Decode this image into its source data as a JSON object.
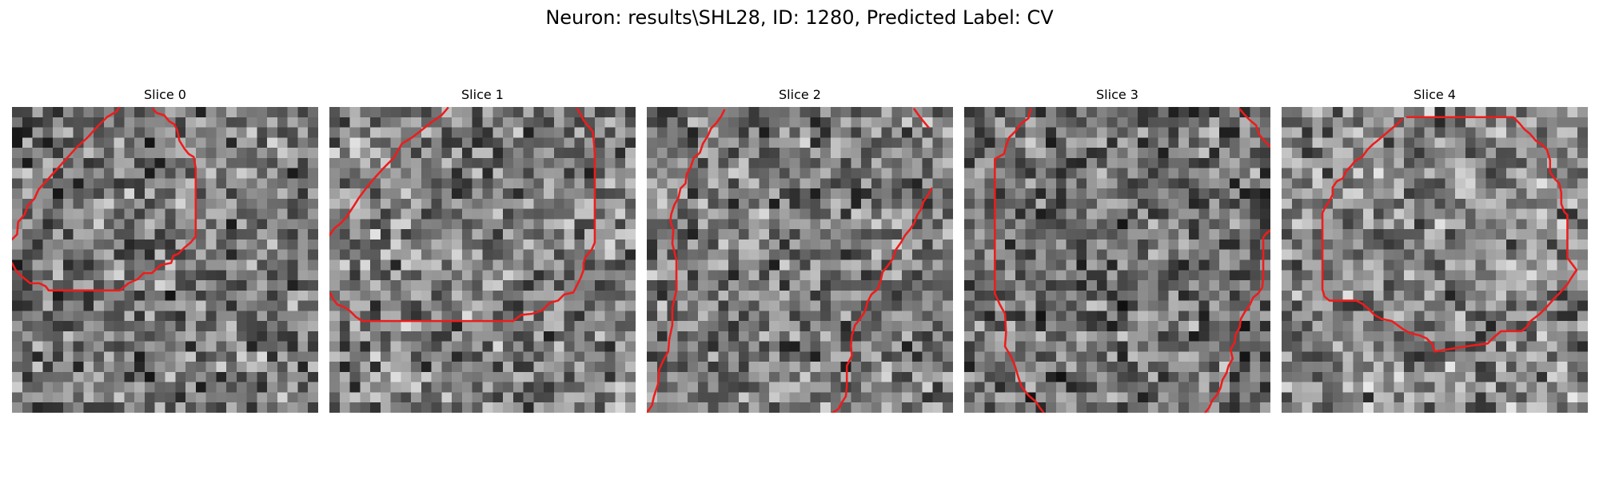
{
  "figure": {
    "title": "Neuron: results\\SHL28, ID: 1280, Predicted Label: CV"
  },
  "contour_color": "#ee1c1c",
  "slices": [
    {
      "title": "Slice 0",
      "seed": 11,
      "base": 0.46,
      "contours": [
        [
          [
            0,
            13.0
          ],
          [
            0.5,
            12.5
          ],
          [
            0.6,
            11.3
          ],
          [
            1.2,
            10.6
          ],
          [
            1.6,
            9.6
          ],
          [
            2.2,
            9.0
          ],
          [
            2.6,
            8.1
          ],
          [
            3.6,
            7.0
          ],
          [
            4.5,
            6.0
          ],
          [
            5.4,
            5.0
          ],
          [
            6.3,
            4.0
          ],
          [
            7.4,
            3.0
          ],
          [
            8.3,
            2.0
          ],
          [
            9.3,
            1.0
          ],
          [
            10.3,
            0.4
          ],
          [
            10.5,
            0
          ]
        ],
        [
          [
            13.8,
            0.2
          ],
          [
            14.2,
            0.6
          ],
          [
            14.9,
            0.8
          ],
          [
            15.4,
            1.4
          ],
          [
            15.9,
            1.7
          ],
          [
            16.2,
            2.3
          ],
          [
            16.4,
            3.3
          ],
          [
            16.9,
            4.1
          ],
          [
            17.3,
            4.6
          ],
          [
            17.8,
            4.9
          ],
          [
            18.0,
            6.0
          ],
          [
            18.0,
            9.5
          ],
          [
            18.0,
            12.7
          ],
          [
            17.5,
            13.3
          ],
          [
            16.9,
            13.8
          ],
          [
            16.3,
            14.4
          ],
          [
            15.8,
            14.6
          ],
          [
            15.6,
            15.3
          ],
          [
            14.6,
            15.5
          ],
          [
            13.7,
            16.3
          ],
          [
            12.9,
            16.3
          ],
          [
            12.3,
            16.9
          ],
          [
            11.4,
            17.3
          ],
          [
            10.6,
            18.0
          ],
          [
            8.6,
            18.0
          ],
          [
            5.0,
            18.0
          ],
          [
            3.6,
            18.0
          ],
          [
            3.3,
            17.6
          ],
          [
            2.7,
            17.3
          ],
          [
            1.8,
            17.3
          ],
          [
            1.3,
            16.9
          ],
          [
            0.7,
            16.4
          ],
          [
            0.3,
            15.9
          ],
          [
            0,
            15.3
          ]
        ]
      ]
    },
    {
      "title": "Slice 1",
      "seed": 23,
      "base": 0.5,
      "contours": [
        [
          [
            0,
            12.6
          ],
          [
            0.5,
            11.9
          ],
          [
            1.0,
            11.5
          ],
          [
            1.6,
            10.9
          ],
          [
            2.0,
            10.3
          ],
          [
            2.4,
            9.7
          ],
          [
            2.9,
            8.9
          ],
          [
            3.5,
            8.1
          ],
          [
            4.4,
            7.0
          ],
          [
            5.3,
            6.0
          ],
          [
            6.3,
            5.0
          ],
          [
            7.1,
            3.6
          ],
          [
            8.1,
            3.0
          ],
          [
            9.0,
            2.3
          ],
          [
            10.0,
            1.5
          ],
          [
            11.0,
            0.8
          ],
          [
            11.6,
            0.1
          ]
        ],
        [
          [
            24.3,
            0.2
          ],
          [
            24.6,
            0.7
          ],
          [
            24.9,
            1.3
          ],
          [
            25.3,
            1.8
          ],
          [
            25.8,
            2.4
          ],
          [
            25.9,
            3.3
          ],
          [
            26.0,
            4.5
          ],
          [
            26.0,
            7.7
          ],
          [
            26.0,
            11.5
          ],
          [
            26.0,
            13.3
          ],
          [
            25.7,
            14.0
          ],
          [
            25.1,
            14.7
          ],
          [
            24.9,
            15.3
          ],
          [
            24.9,
            16.0
          ],
          [
            24.6,
            16.8
          ],
          [
            24.3,
            17.4
          ],
          [
            23.9,
            18.2
          ],
          [
            23.0,
            18.4
          ],
          [
            22.4,
            19.0
          ],
          [
            21.6,
            19.2
          ],
          [
            20.8,
            20.0
          ],
          [
            19.8,
            20.3
          ],
          [
            18.8,
            20.4
          ],
          [
            18.0,
            21.0
          ],
          [
            10.0,
            21.0
          ],
          [
            3.2,
            21.0
          ],
          [
            2.6,
            20.6
          ],
          [
            2.0,
            20.0
          ],
          [
            1.4,
            19.6
          ],
          [
            0.8,
            19.4
          ],
          [
            0.4,
            18.9
          ],
          [
            0.1,
            18.3
          ]
        ]
      ]
    },
    {
      "title": "Slice 2",
      "seed": 37,
      "base": 0.48,
      "contours": [
        [
          [
            0,
            30.0
          ],
          [
            0.5,
            29.3
          ],
          [
            0.7,
            28.4
          ],
          [
            1.1,
            27.2
          ],
          [
            1.2,
            25.8
          ],
          [
            1.6,
            24.9
          ],
          [
            2.1,
            24.0
          ],
          [
            2.2,
            22.8
          ],
          [
            2.5,
            21.4
          ],
          [
            2.5,
            19.7
          ],
          [
            2.9,
            18.0
          ],
          [
            2.9,
            16.4
          ],
          [
            2.9,
            15.0
          ],
          [
            2.5,
            13.4
          ],
          [
            2.6,
            12.1
          ],
          [
            2.3,
            11.2
          ],
          [
            2.4,
            10.5
          ],
          [
            2.7,
            9.6
          ],
          [
            3.1,
            8.9
          ],
          [
            3.3,
            8.0
          ],
          [
            3.8,
            7.5
          ],
          [
            3.9,
            6.6
          ],
          [
            4.3,
            5.9
          ],
          [
            4.6,
            5.0
          ],
          [
            5.2,
            4.5
          ],
          [
            5.5,
            3.6
          ],
          [
            6.0,
            2.8
          ],
          [
            6.3,
            2.1
          ],
          [
            6.8,
            1.6
          ],
          [
            7.3,
            0.9
          ],
          [
            7.6,
            0.3
          ]
        ],
        [
          [
            26.2,
            0.2
          ],
          [
            26.7,
            0.9
          ],
          [
            27.1,
            1.4
          ],
          [
            27.6,
            2.0
          ]
        ],
        [
          [
            18.2,
            30.0
          ],
          [
            18.8,
            29.6
          ],
          [
            19.1,
            29.0
          ],
          [
            19.5,
            28.4
          ],
          [
            19.6,
            27.4
          ],
          [
            19.6,
            26.4
          ],
          [
            19.6,
            25.4
          ],
          [
            20.1,
            24.4
          ],
          [
            20.0,
            23.4
          ],
          [
            20.1,
            22.4
          ],
          [
            20.4,
            21.4
          ],
          [
            20.9,
            20.8
          ],
          [
            21.4,
            20.0
          ],
          [
            21.6,
            19.2
          ],
          [
            22.0,
            18.4
          ],
          [
            22.6,
            17.9
          ],
          [
            22.9,
            17.1
          ],
          [
            23.1,
            16.2
          ],
          [
            23.6,
            15.6
          ],
          [
            24.1,
            14.9
          ],
          [
            24.4,
            14.0
          ],
          [
            24.9,
            13.3
          ],
          [
            25.3,
            12.6
          ],
          [
            25.8,
            12.0
          ],
          [
            26.2,
            11.4
          ],
          [
            26.5,
            10.6
          ],
          [
            26.9,
            10.0
          ],
          [
            27.1,
            9.3
          ],
          [
            27.6,
            8.6
          ],
          [
            27.9,
            8.0
          ]
        ]
      ]
    },
    {
      "title": "Slice 3",
      "seed": 53,
      "base": 0.44,
      "contours": [
        [
          [
            6.5,
            0.2
          ],
          [
            6.3,
            1.1
          ],
          [
            5.5,
            1.7
          ],
          [
            5.0,
            2.4
          ],
          [
            4.4,
            3.0
          ],
          [
            4.1,
            3.8
          ],
          [
            3.9,
            4.6
          ],
          [
            3.0,
            5.1
          ],
          [
            3.0,
            8.5
          ],
          [
            3.0,
            14.0
          ],
          [
            3.0,
            18.3
          ],
          [
            3.5,
            19.4
          ],
          [
            4.0,
            20.3
          ],
          [
            4.1,
            22.1
          ],
          [
            4.0,
            23.5
          ],
          [
            4.6,
            24.5
          ],
          [
            5.0,
            25.5
          ],
          [
            5.3,
            26.5
          ],
          [
            5.6,
            27.4
          ],
          [
            6.3,
            28.3
          ],
          [
            7.0,
            28.9
          ],
          [
            7.4,
            29.5
          ],
          [
            7.8,
            30.0
          ]
        ],
        [
          [
            27.0,
            0.2
          ],
          [
            27.5,
            0.8
          ],
          [
            28.0,
            1.3
          ],
          [
            28.6,
            1.8
          ],
          [
            28.9,
            2.7
          ],
          [
            29.4,
            3.3
          ],
          [
            30.0,
            3.9
          ]
        ],
        [
          [
            23.6,
            30.0
          ],
          [
            24.0,
            29.5
          ],
          [
            24.3,
            28.8
          ],
          [
            24.8,
            28.2
          ],
          [
            25.1,
            27.6
          ],
          [
            25.3,
            26.8
          ],
          [
            25.7,
            26.1
          ],
          [
            25.9,
            25.4
          ],
          [
            26.3,
            24.7
          ],
          [
            26.1,
            23.8
          ],
          [
            26.5,
            23.1
          ],
          [
            26.6,
            22.3
          ],
          [
            27.0,
            21.6
          ],
          [
            27.1,
            20.8
          ],
          [
            27.5,
            20.1
          ],
          [
            28.0,
            19.4
          ],
          [
            28.3,
            18.7
          ],
          [
            28.8,
            18.3
          ],
          [
            29.2,
            17.7
          ],
          [
            29.3,
            16.7
          ],
          [
            29.3,
            15.3
          ],
          [
            29.3,
            13.6
          ],
          [
            29.3,
            12.8
          ],
          [
            29.6,
            12.4
          ],
          [
            30.0,
            12.1
          ]
        ]
      ]
    },
    {
      "title": "Slice 4",
      "seed": 71,
      "base": 0.52,
      "contours": [
        [
          [
            12.3,
            1.0
          ],
          [
            18.0,
            1.0
          ],
          [
            22.7,
            1.0
          ],
          [
            23.3,
            1.6
          ],
          [
            23.8,
            2.2
          ],
          [
            24.3,
            2.6
          ],
          [
            24.9,
            3.3
          ],
          [
            25.5,
            3.7
          ],
          [
            26.0,
            4.2
          ],
          [
            26.3,
            5.2
          ],
          [
            26.3,
            6.4
          ],
          [
            26.8,
            7.1
          ],
          [
            27.2,
            7.5
          ],
          [
            27.4,
            8.4
          ],
          [
            27.4,
            9.5
          ],
          [
            27.7,
            10.3
          ],
          [
            28.0,
            10.6
          ],
          [
            28.0,
            12.4
          ],
          [
            28.0,
            14.8
          ],
          [
            28.3,
            15.2
          ],
          [
            28.9,
            16.0
          ],
          [
            28.3,
            16.9
          ],
          [
            28.0,
            17.4
          ],
          [
            27.3,
            18.2
          ],
          [
            26.7,
            18.8
          ],
          [
            26.0,
            19.6
          ],
          [
            25.3,
            20.3
          ],
          [
            24.4,
            21.0
          ],
          [
            24.0,
            21.6
          ],
          [
            23.5,
            22.0
          ],
          [
            21.5,
            22.0
          ],
          [
            20.8,
            22.6
          ],
          [
            20.4,
            23.0
          ],
          [
            20.2,
            23.2
          ],
          [
            18.0,
            23.5
          ],
          [
            15.0,
            24.0
          ],
          [
            14.8,
            23.3
          ],
          [
            14.2,
            22.7
          ],
          [
            13.5,
            22.4
          ],
          [
            12.6,
            22.2
          ],
          [
            11.9,
            21.8
          ],
          [
            10.8,
            21.0
          ],
          [
            9.8,
            20.8
          ],
          [
            9.1,
            20.4
          ],
          [
            8.5,
            19.8
          ],
          [
            7.9,
            19.3
          ],
          [
            7.3,
            19.0
          ],
          [
            5.7,
            19.0
          ],
          [
            4.7,
            19.0
          ],
          [
            4.2,
            18.6
          ],
          [
            4.0,
            17.9
          ],
          [
            4.0,
            15.0
          ],
          [
            4.0,
            11.0
          ],
          [
            4.0,
            10.4
          ],
          [
            4.3,
            9.8
          ],
          [
            4.7,
            9.2
          ],
          [
            5.0,
            8.6
          ],
          [
            5.0,
            7.9
          ],
          [
            5.4,
            7.3
          ],
          [
            6.0,
            7.0
          ],
          [
            6.3,
            6.3
          ],
          [
            6.8,
            5.8
          ],
          [
            7.2,
            5.3
          ],
          [
            7.9,
            4.9
          ],
          [
            8.4,
            4.2
          ],
          [
            8.9,
            3.7
          ],
          [
            9.4,
            3.3
          ],
          [
            10.0,
            2.8
          ],
          [
            10.7,
            2.2
          ],
          [
            11.3,
            1.7
          ],
          [
            11.8,
            1.2
          ]
        ]
      ]
    }
  ]
}
